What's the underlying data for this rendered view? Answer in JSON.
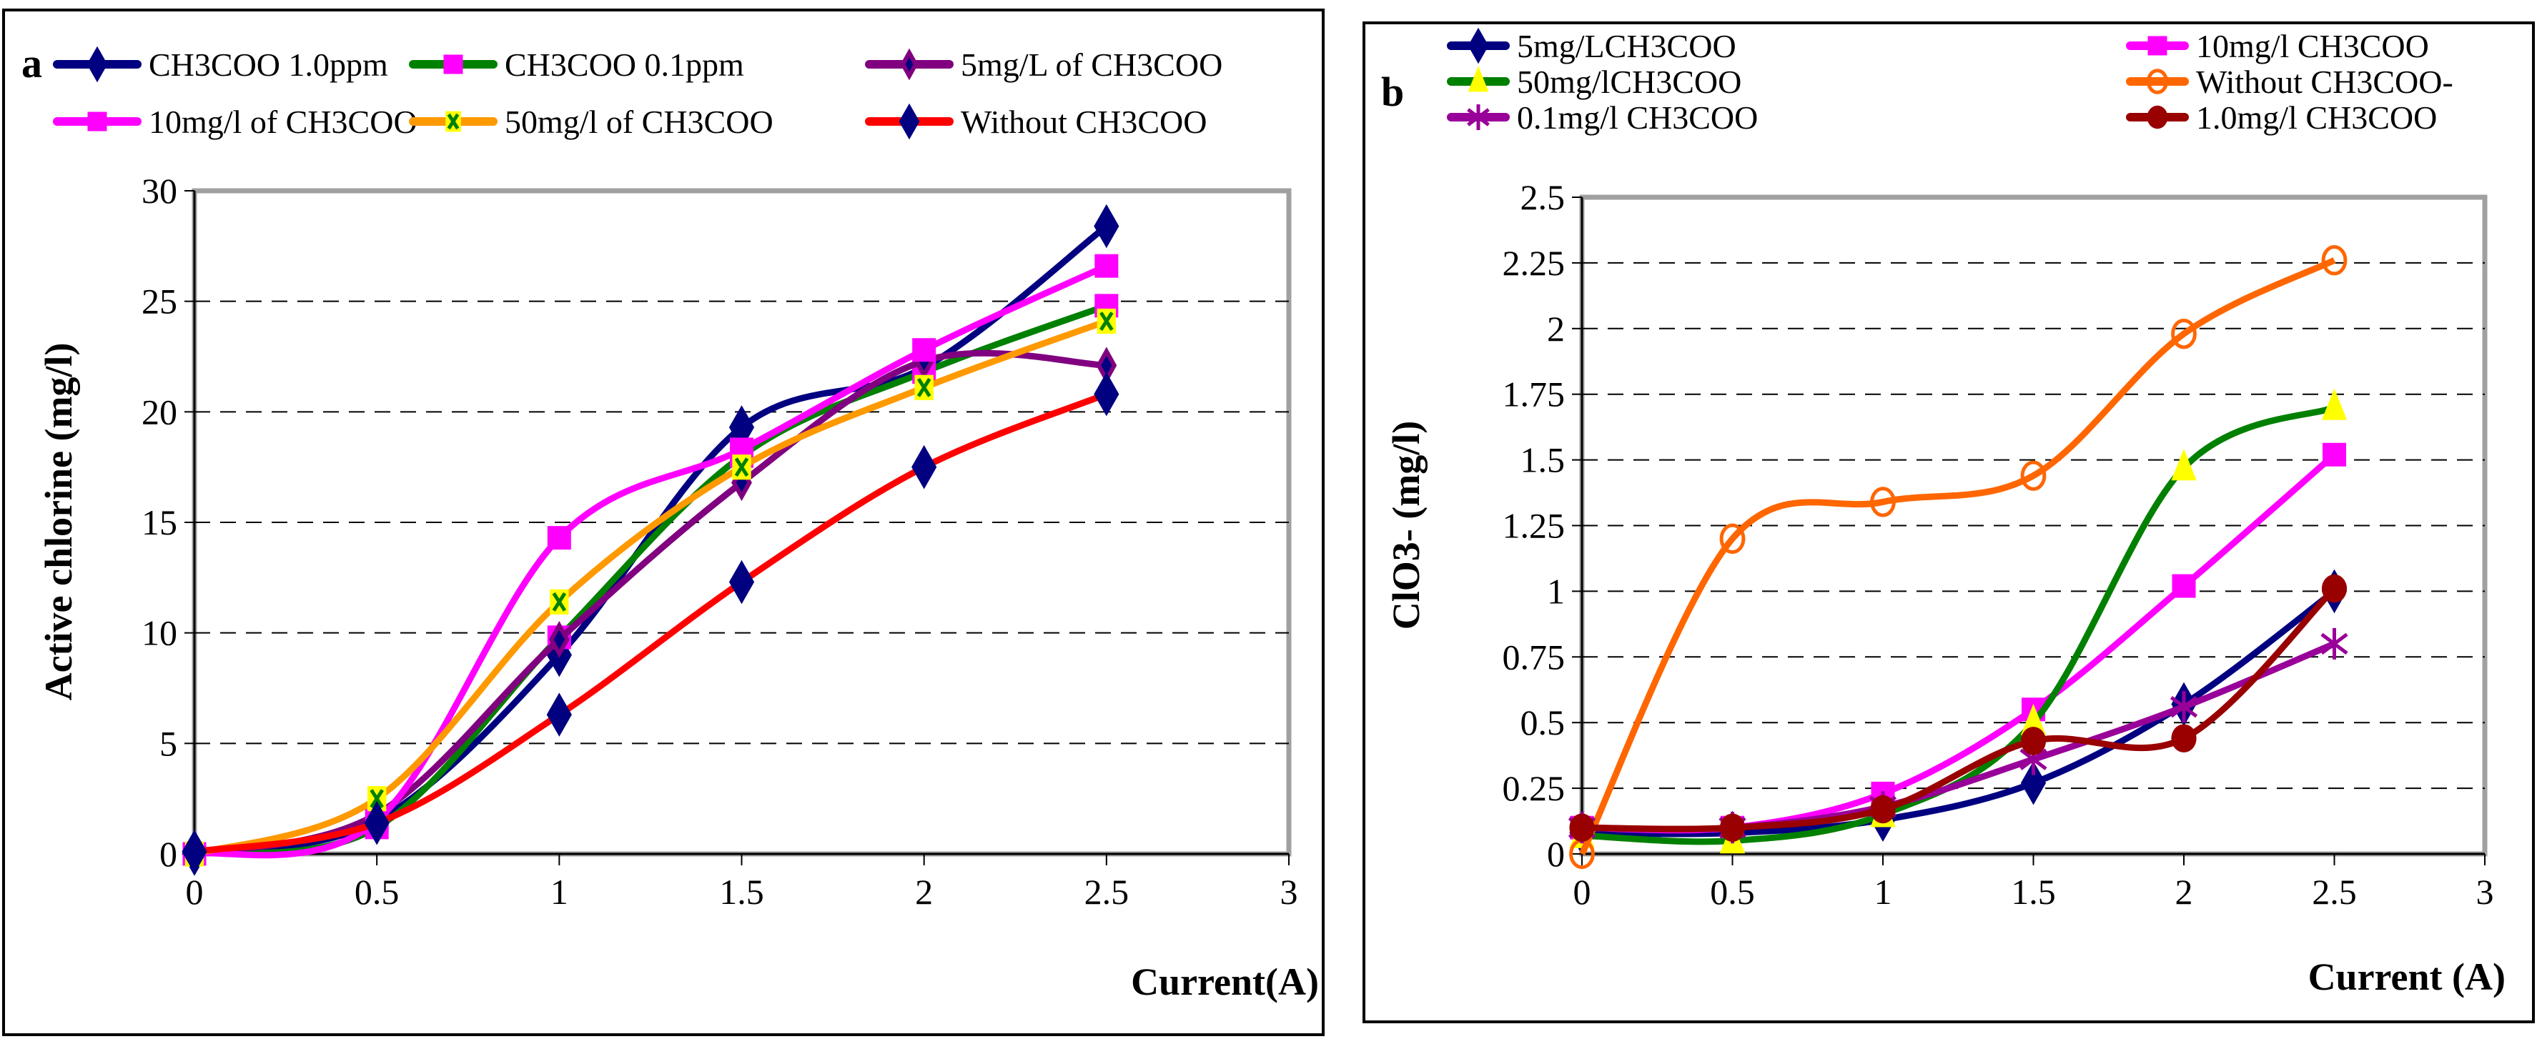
{
  "chart_data": [
    {
      "type": "line",
      "panel_label": "a",
      "xlabel": "Current(A)",
      "ylabel": "Active chlorine (mg/l)",
      "xlim": [
        0,
        3
      ],
      "ylim": [
        0,
        30
      ],
      "xticks": [
        "0",
        "0.5",
        "1",
        "1.5",
        "2",
        "2.5",
        "3"
      ],
      "yticks": [
        "0",
        "5",
        "10",
        "15",
        "20",
        "25",
        "30"
      ],
      "grid": "horizontal dashed",
      "legend_placement": "top",
      "x": [
        0,
        0.5,
        1,
        1.5,
        2,
        2.5
      ],
      "series": [
        {
          "name": "CH3COO 1.0ppm",
          "line_color": "#000080",
          "marker": "diamond",
          "marker_color": "#000080",
          "values": [
            0,
            1.5,
            9.0,
            19.3,
            22.0,
            28.4
          ]
        },
        {
          "name": "CH3COO 0.1ppm",
          "line_color": "#008000",
          "marker": "square",
          "marker_color": "#ff00ff",
          "values": [
            0,
            1.2,
            9.8,
            18.0,
            21.8,
            24.8
          ]
        },
        {
          "name": "5mg/L of CH3COO",
          "line_color": "#800080",
          "marker": "small-diamond",
          "marker_color": "#000080",
          "values": [
            0,
            1.8,
            9.7,
            16.8,
            22.3,
            22.1
          ]
        },
        {
          "name": "10mg/l of CH3COO",
          "line_color": "#ff00ff",
          "marker": "square",
          "marker_color": "#ff00ff",
          "values": [
            0,
            1.5,
            14.3,
            18.3,
            22.8,
            26.6
          ]
        },
        {
          "name": "50mg/l of CH3COO",
          "line_color": "#ff9900",
          "marker": "x-square",
          "marker_color": "#ffff00",
          "values": [
            0,
            2.5,
            11.4,
            17.5,
            21.1,
            24.1
          ]
        },
        {
          "name": "Without CH3COO",
          "line_color": "#ff0000",
          "marker": "diamond",
          "marker_color": "#000080",
          "values": [
            0.1,
            1.4,
            6.3,
            12.3,
            17.5,
            20.8
          ]
        }
      ]
    },
    {
      "type": "line",
      "panel_label": "b",
      "xlabel": "Current (A)",
      "ylabel": "ClO3- (mg/l)",
      "xlim": [
        0,
        3
      ],
      "ylim": [
        0,
        2.5
      ],
      "xticks": [
        "0",
        "0.5",
        "1",
        "1.5",
        "2",
        "2.5",
        "3"
      ],
      "yticks": [
        "0",
        "0.25",
        "0.5",
        "0.75",
        "1",
        "1.25",
        "1.5",
        "1.75",
        "2",
        "2.25",
        "2.5"
      ],
      "grid": "horizontal dashed",
      "legend_placement": "top",
      "x": [
        0,
        0.5,
        1,
        1.5,
        2,
        2.5
      ],
      "series": [
        {
          "name": "5mg/LCH3COO",
          "line_color": "#000080",
          "marker": "diamond",
          "marker_color": "#000080",
          "values": [
            0.08,
            0.08,
            0.13,
            0.27,
            0.57,
            1.0
          ]
        },
        {
          "name": "10mg/l CH3COO",
          "line_color": "#ff00ff",
          "marker": "square",
          "marker_color": "#ff00ff",
          "values": [
            0.1,
            0.1,
            0.23,
            0.55,
            1.02,
            1.52
          ]
        },
        {
          "name": "50mg/lCH3COO",
          "line_color": "#008000",
          "marker": "triangle",
          "marker_color": "#ffff00",
          "values": [
            0.07,
            0.05,
            0.15,
            0.5,
            1.47,
            1.7
          ]
        },
        {
          "name": "Without CH3COO-",
          "line_color": "#ff6600",
          "marker": "open-circle",
          "marker_color": "#ff6600",
          "values": [
            0,
            1.2,
            1.34,
            1.44,
            1.98,
            2.26
          ]
        },
        {
          "name": "0.1mg/l CH3COO",
          "line_color": "#990099",
          "marker": "asterisk",
          "marker_color": "#990099",
          "values": [
            0.1,
            0.1,
            0.18,
            0.36,
            0.56,
            0.8
          ]
        },
        {
          "name": "1.0mg/l CH3COO",
          "line_color": "#990000",
          "marker": "circle",
          "marker_color": "#990000",
          "values": [
            0.1,
            0.1,
            0.17,
            0.43,
            0.44,
            1.01
          ]
        }
      ]
    }
  ]
}
